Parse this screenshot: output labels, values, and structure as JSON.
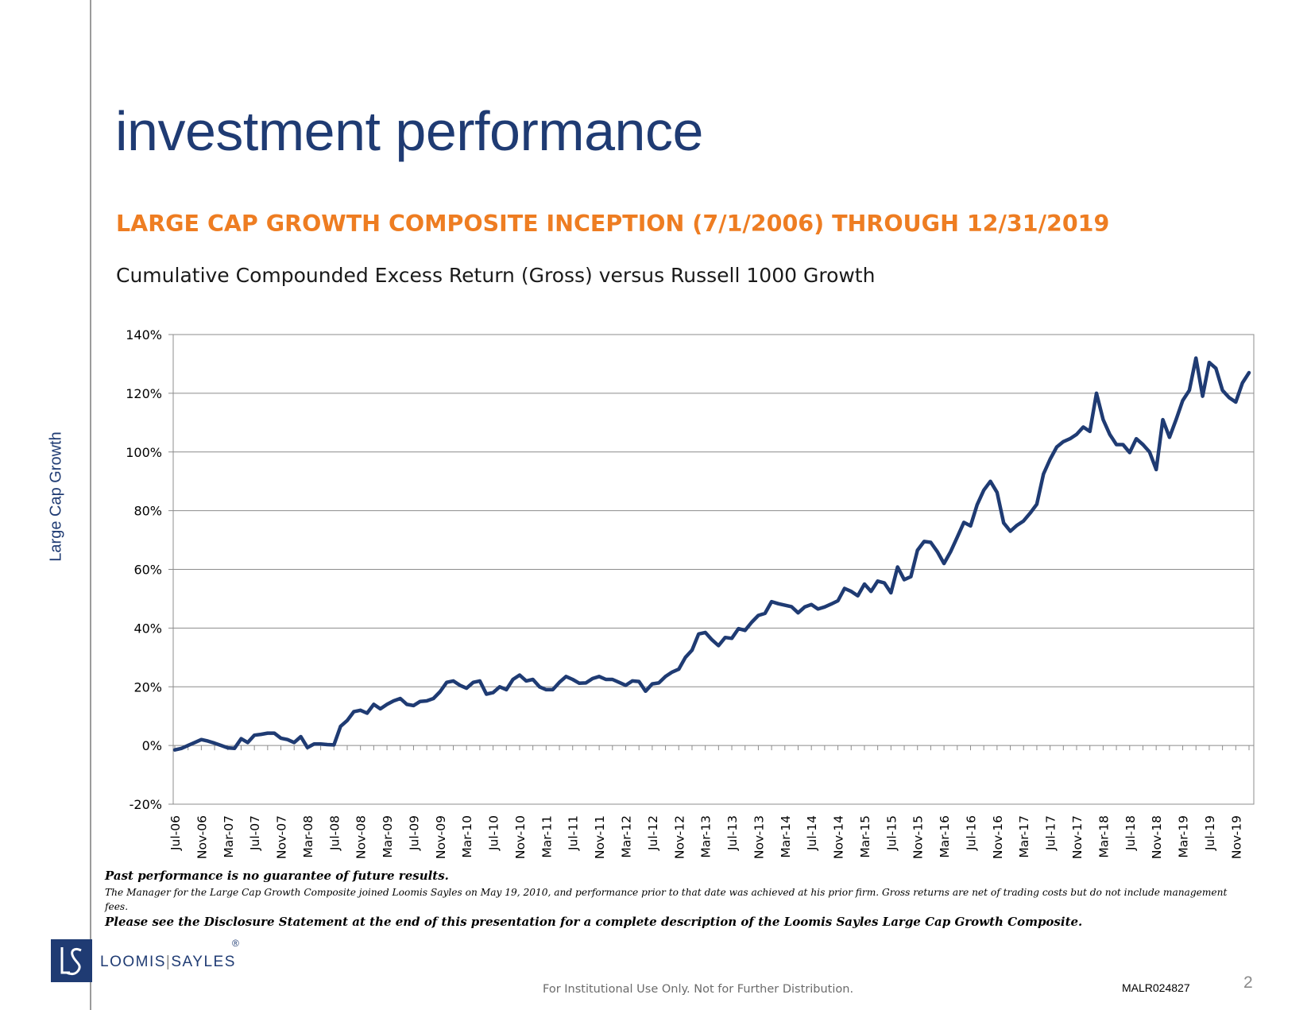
{
  "slide": {
    "title": "investment performance",
    "subtitle": "LARGE CAP GROWTH COMPOSITE INCEPTION (7/1/2006) THROUGH 12/31/2019",
    "chart_heading": "Cumulative Compounded Excess Return (Gross) versus Russell 1000 Growth",
    "side_label": "Large Cap Growth",
    "colors": {
      "title": "#1f3b73",
      "subtitle": "#ee7d22",
      "line": "#1f3b73"
    }
  },
  "notes": {
    "disclaimer": "Past performance is no guarantee of future results.",
    "manager_note": "The Manager for the Large Cap Growth Composite joined Loomis Sayles on May 19, 2010, and performance prior to that date was achieved at his prior firm. Gross returns are net of trading costs but do not include management fees.",
    "disclosure": "Please see the Disclosure Statement at the end of this presentation for a complete description of the Loomis Sayles Large Cap Growth Composite."
  },
  "logo": {
    "name_left": "LOOMIS",
    "separator": "|",
    "name_right": "SAYLES",
    "registered": "®",
    "icon": "ls-monogram-icon"
  },
  "footer": {
    "confidentiality": "For Institutional Use Only. Not for Further Distribution.",
    "doc_id": "MALR024827",
    "page_number": "2"
  },
  "chart_data": {
    "type": "line",
    "title": "",
    "xlabel": "",
    "ylabel": "",
    "ylim": [
      -20,
      140
    ],
    "yticks": [
      -20,
      0,
      20,
      40,
      60,
      80,
      100,
      120,
      140
    ],
    "ytick_labels": [
      "-20%",
      "0%",
      "20%",
      "40%",
      "60%",
      "80%",
      "100%",
      "120%",
      "140%"
    ],
    "xtick_labels": [
      "Jul-06",
      "Nov-06",
      "Mar-07",
      "Jul-07",
      "Nov-07",
      "Mar-08",
      "Jul-08",
      "Nov-08",
      "Mar-09",
      "Jul-09",
      "Nov-09",
      "Mar-10",
      "Jul-10",
      "Nov-10",
      "Mar-11",
      "Jul-11",
      "Nov-11",
      "Mar-12",
      "Jul-12",
      "Nov-12",
      "Mar-13",
      "Jul-13",
      "Nov-13",
      "Mar-14",
      "Jul-14",
      "Nov-14",
      "Mar-15",
      "Jul-15",
      "Nov-15",
      "Mar-16",
      "Jul-16",
      "Nov-16",
      "Mar-17",
      "Jul-17",
      "Nov-17",
      "Mar-18",
      "Jul-18",
      "Nov-18",
      "Mar-19",
      "Jul-19",
      "Nov-19"
    ],
    "grid": true,
    "legend": "none",
    "series": [
      {
        "values": [
          -1.5,
          -1,
          0,
          1,
          2,
          1.5,
          0.8,
          0,
          -0.8,
          -1,
          2.3,
          1,
          3.5,
          3.8,
          4.2,
          4.2,
          2.5,
          2,
          1,
          3,
          -0.7,
          0.5,
          0.5,
          0.3,
          0.2,
          6.5,
          8.5,
          11.5,
          12,
          11,
          14,
          12.5,
          14,
          15.2,
          16,
          14,
          13.6,
          15,
          15.2,
          16,
          18.3,
          21.5,
          22,
          20.5,
          19.5,
          21.5,
          22,
          17.5,
          18,
          20,
          19,
          22.5,
          24,
          22,
          22.5,
          20,
          19,
          19,
          21.5,
          23.5,
          22.5,
          21.2,
          21.3,
          22.8,
          23.5,
          22.5,
          22.5,
          21.5,
          20.5,
          22,
          21.8,
          18.5,
          21,
          21.3,
          23.5,
          25,
          26,
          30,
          32.5,
          38,
          38.5,
          36,
          34,
          36.8,
          36.5,
          39.8,
          39.2,
          42,
          44.3,
          45,
          49,
          48.3,
          47.8,
          47.3,
          45.2,
          47.2,
          48,
          46.5,
          47.2,
          48.2,
          49.3,
          53.5,
          52.5,
          51,
          55,
          52.5,
          56,
          55.4,
          52,
          60.8,
          56.5,
          57.5,
          66.5,
          69.5,
          69.2,
          66,
          62,
          66,
          71,
          76,
          74.8,
          82,
          87,
          90,
          86.2,
          75.8,
          73,
          75,
          76.5,
          79.2,
          82.2,
          92.5,
          97.5,
          101.7,
          103.5,
          104.5,
          106,
          108.5,
          107,
          120,
          111,
          106,
          102.5,
          102.5,
          99.8,
          104.5,
          102.5,
          100,
          94,
          111,
          105,
          111,
          117.5,
          121,
          132,
          119,
          130.5,
          128.5,
          121,
          118.5,
          117,
          123.5,
          127
        ]
      }
    ]
  }
}
